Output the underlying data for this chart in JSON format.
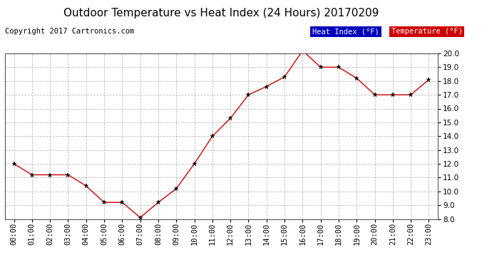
{
  "title": "Outdoor Temperature vs Heat Index (24 Hours) 20170209",
  "copyright": "Copyright 2017 Cartronics.com",
  "hours": [
    "00:00",
    "01:00",
    "02:00",
    "03:00",
    "04:00",
    "05:00",
    "06:00",
    "07:00",
    "08:00",
    "09:00",
    "10:00",
    "11:00",
    "12:00",
    "13:00",
    "14:00",
    "15:00",
    "16:00",
    "17:00",
    "18:00",
    "19:00",
    "20:00",
    "21:00",
    "22:00",
    "23:00"
  ],
  "temperature": [
    12.0,
    11.2,
    11.2,
    11.2,
    10.4,
    9.2,
    9.2,
    8.1,
    9.2,
    10.2,
    12.0,
    14.0,
    15.3,
    17.0,
    17.6,
    18.3,
    20.2,
    19.0,
    19.0,
    18.2,
    17.0,
    17.0,
    17.0,
    18.1
  ],
  "heat_index": [
    12.0,
    11.2,
    11.2,
    11.2,
    10.4,
    9.2,
    9.2,
    8.1,
    9.2,
    10.2,
    12.0,
    14.0,
    15.3,
    17.0,
    17.6,
    18.3,
    20.2,
    19.0,
    19.0,
    18.2,
    17.0,
    17.0,
    17.0,
    18.1
  ],
  "ylim": [
    8.0,
    20.0
  ],
  "yticks": [
    8.0,
    9.0,
    10.0,
    11.0,
    12.0,
    13.0,
    14.0,
    15.0,
    16.0,
    17.0,
    18.0,
    19.0,
    20.0
  ],
  "temp_color": "#cc0000",
  "heat_index_color": "#0000bb",
  "bg_color": "#ffffff",
  "grid_color": "#bbbbbb",
  "title_fontsize": 11,
  "copyright_fontsize": 7.5,
  "tick_fontsize": 7.5
}
